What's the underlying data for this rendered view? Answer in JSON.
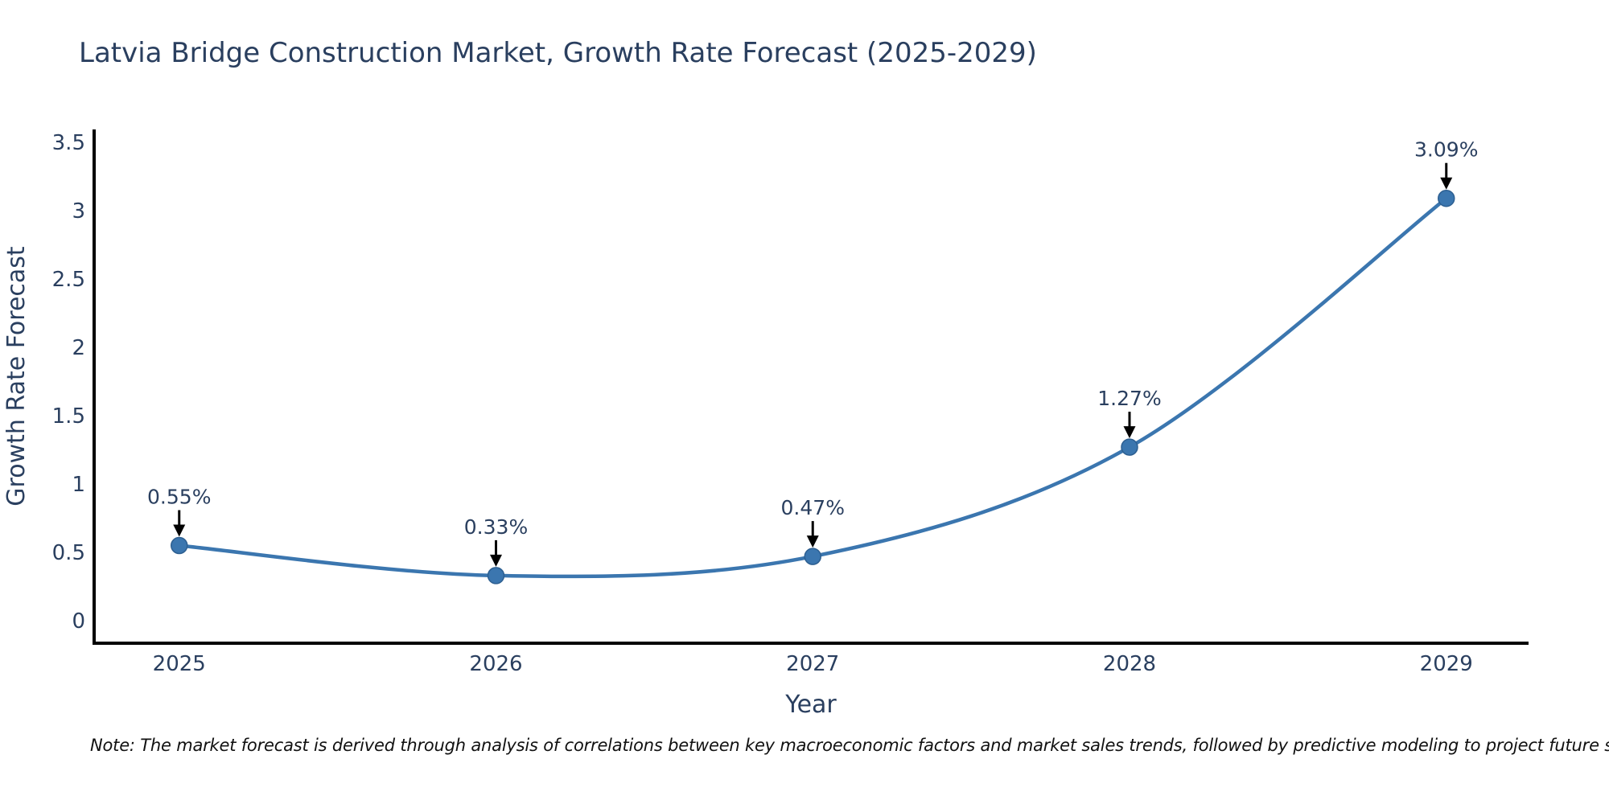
{
  "title": "Latvia Bridge Construction Market, Growth Rate Forecast (2025-2029)",
  "note": "Note: The market forecast is derived through analysis of correlations between key macroeconomic factors and market sales trends, followed by predictive modeling to project future sales",
  "chart_data": {
    "type": "line",
    "title": "Latvia Bridge Construction Market, Growth Rate Forecast (2025-2029)",
    "categories": [
      "2025",
      "2026",
      "2027",
      "2028",
      "2029"
    ],
    "series": [
      {
        "name": "Growth Rate Forecast",
        "values": [
          0.55,
          0.33,
          0.47,
          1.27,
          3.09
        ]
      }
    ],
    "point_labels": [
      "0.55%",
      "0.33%",
      "0.47%",
      "1.27%",
      "3.09%"
    ],
    "xlabel": "Year",
    "ylabel": "Growth Rate Forecast",
    "ylim": [
      0,
      3.5
    ],
    "yticks": [
      0,
      0.5,
      1,
      1.5,
      2,
      2.5,
      3,
      3.5
    ],
    "ytick_labels": [
      "0",
      "0.5",
      "1",
      "1.5",
      "2",
      "2.5",
      "3",
      "3.5"
    ],
    "line_shape": "spline",
    "grid": false,
    "legend_position": "none",
    "colors": {
      "line": "#3b76af",
      "marker": "#3b76af",
      "marker_edge": "#2d5f91",
      "axis": "#000000",
      "text": "#2a3f5f",
      "annotation_arrow": "#000000",
      "note_text": "#111111",
      "background": "#ffffff"
    }
  }
}
